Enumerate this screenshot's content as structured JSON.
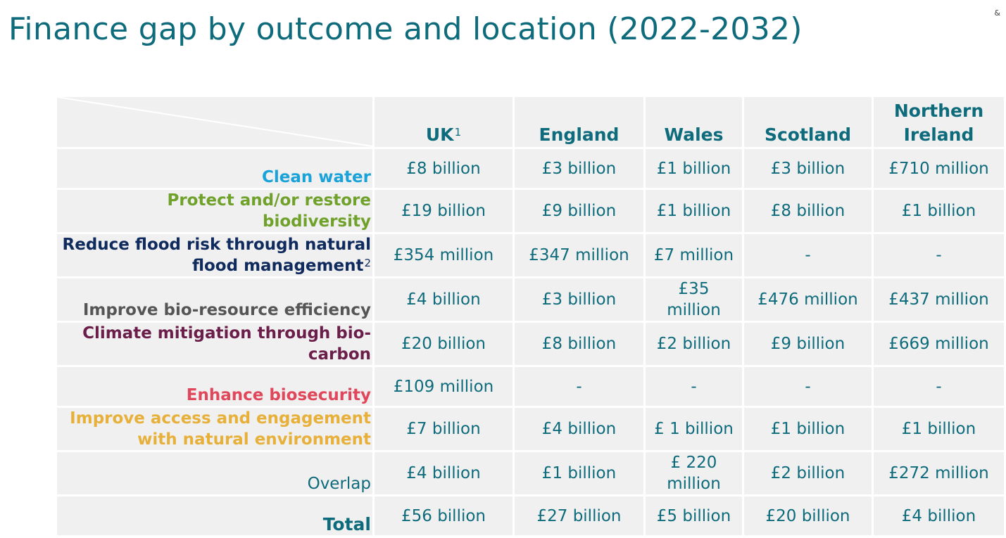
{
  "title": "Finance gap by outcome and location (2022-2032)",
  "corner_mark": "&",
  "colors": {
    "teal": "#0e6b7c",
    "clean_water": "#1ba3d9",
    "biodiversity": "#6fa12b",
    "flood": "#0f2a5c",
    "bio_resource": "#555555",
    "climate": "#6b1e4a",
    "biosecurity": "#e0475b",
    "access": "#e7b03a"
  },
  "columns": [
    {
      "label": "UK",
      "sup": "1"
    },
    {
      "label": "England",
      "sup": ""
    },
    {
      "label": "Wales",
      "sup": ""
    },
    {
      "label": "Scotland",
      "sup": ""
    },
    {
      "label": "Northern Ireland",
      "sup": ""
    }
  ],
  "rows": [
    {
      "outcome": "Clean water",
      "sup": "",
      "values": [
        "£8 billion",
        "£3 billion",
        "£1 billion",
        "£3 billion",
        "£710 million"
      ]
    },
    {
      "outcome": "Protect and/or restore biodiversity",
      "sup": "",
      "values": [
        "£19 billion",
        "£9 billion",
        "£1 billion",
        "£8 billion",
        "£1 billion"
      ]
    },
    {
      "outcome": "Reduce flood risk through natural flood management",
      "sup": "2",
      "values": [
        "£354 million",
        "£347 million",
        "£7 million",
        "-",
        "-"
      ]
    },
    {
      "outcome": "Improve bio-resource efficiency",
      "sup": "",
      "values": [
        "£4 billion",
        "£3 billion",
        "£35 million",
        "£476 million",
        "£437 million"
      ]
    },
    {
      "outcome": "Climate mitigation through bio-carbon",
      "sup": "",
      "values": [
        "£20 billion",
        "£8 billion",
        "£2 billion",
        "£9 billion",
        "£669 million"
      ]
    },
    {
      "outcome": "Enhance biosecurity",
      "sup": "",
      "values": [
        "£109 million",
        "-",
        "-",
        "-",
        "-"
      ]
    },
    {
      "outcome": "Improve access and engagement with natural environment",
      "sup": "",
      "values": [
        "£7 billion",
        "£4 billion",
        "£ 1 billion",
        "£1 billion",
        "£1 billion"
      ]
    },
    {
      "outcome": "Overlap",
      "sup": "",
      "values": [
        "£4 billion",
        "£1 billion",
        "£ 220 million",
        "£2 billion",
        "£272 million"
      ]
    },
    {
      "outcome": "Total",
      "sup": "",
      "values": [
        "£56 billion",
        "£27 billion",
        "£5 billion",
        "£20 billion",
        "£4 billion"
      ]
    }
  ]
}
